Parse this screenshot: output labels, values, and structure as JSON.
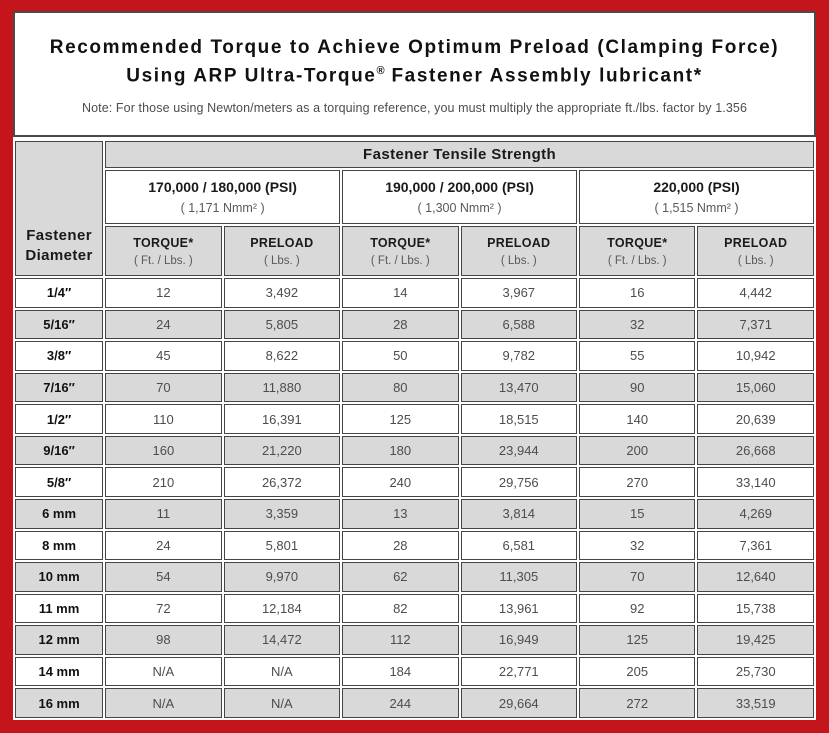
{
  "title": {
    "line1": "Recommended Torque to Achieve Optimum Preload (Clamping Force)",
    "line2_pre": "Using ARP Ultra-Torque",
    "line2_reg": "®",
    "line2_post": " Fastener Assembly lubricant*",
    "note": "Note: For those using Newton/meters as a torquing reference, you must multiply the appropriate ft./lbs. factor by 1.356"
  },
  "colors": {
    "frame_red": "#c3151b",
    "cell_gray": "#d9d9d9",
    "border_dark": "#454545",
    "text_dark": "#1a1a1a",
    "text_value": "#4d4d4d"
  },
  "table": {
    "corner_header": "Fastener Diameter",
    "main_header": "Fastener Tensile Strength",
    "strength_groups": [
      {
        "psi": "170,000 / 180,000 (PSI)",
        "nmm": "( 1,171 Nmm² )"
      },
      {
        "psi": "190,000 / 200,000 (PSI)",
        "nmm": "( 1,300 Nmm² )"
      },
      {
        "psi": "220,000 (PSI)",
        "nmm": "( 1,515 Nmm² )"
      }
    ],
    "sub_headers": {
      "torque_label": "TORQUE*",
      "torque_unit": "( Ft. / Lbs. )",
      "preload_label": "PRELOAD",
      "preload_unit": "( Lbs. )"
    },
    "rows": [
      {
        "diameter": "1/4″",
        "values": [
          "12",
          "3,492",
          "14",
          "3,967",
          "16",
          "4,442"
        ]
      },
      {
        "diameter": "5/16″",
        "values": [
          "24",
          "5,805",
          "28",
          "6,588",
          "32",
          "7,371"
        ]
      },
      {
        "diameter": "3/8″",
        "values": [
          "45",
          "8,622",
          "50",
          "9,782",
          "55",
          "10,942"
        ]
      },
      {
        "diameter": "7/16″",
        "values": [
          "70",
          "11,880",
          "80",
          "13,470",
          "90",
          "15,060"
        ]
      },
      {
        "diameter": "1/2″",
        "values": [
          "110",
          "16,391",
          "125",
          "18,515",
          "140",
          "20,639"
        ]
      },
      {
        "diameter": "9/16″",
        "values": [
          "160",
          "21,220",
          "180",
          "23,944",
          "200",
          "26,668"
        ]
      },
      {
        "diameter": "5/8″",
        "values": [
          "210",
          "26,372",
          "240",
          "29,756",
          "270",
          "33,140"
        ]
      },
      {
        "diameter": "6 mm",
        "values": [
          "11",
          "3,359",
          "13",
          "3,814",
          "15",
          "4,269"
        ]
      },
      {
        "diameter": "8 mm",
        "values": [
          "24",
          "5,801",
          "28",
          "6,581",
          "32",
          "7,361"
        ]
      },
      {
        "diameter": "10 mm",
        "values": [
          "54",
          "9,970",
          "62",
          "11,305",
          "70",
          "12,640"
        ]
      },
      {
        "diameter": "11 mm",
        "values": [
          "72",
          "12,184",
          "82",
          "13,961",
          "92",
          "15,738"
        ]
      },
      {
        "diameter": "12 mm",
        "values": [
          "98",
          "14,472",
          "112",
          "16,949",
          "125",
          "19,425"
        ]
      },
      {
        "diameter": "14 mm",
        "values": [
          "N/A",
          "N/A",
          "184",
          "22,771",
          "205",
          "25,730"
        ]
      },
      {
        "diameter": "16 mm",
        "values": [
          "N/A",
          "N/A",
          "244",
          "29,664",
          "272",
          "33,519"
        ]
      }
    ]
  }
}
